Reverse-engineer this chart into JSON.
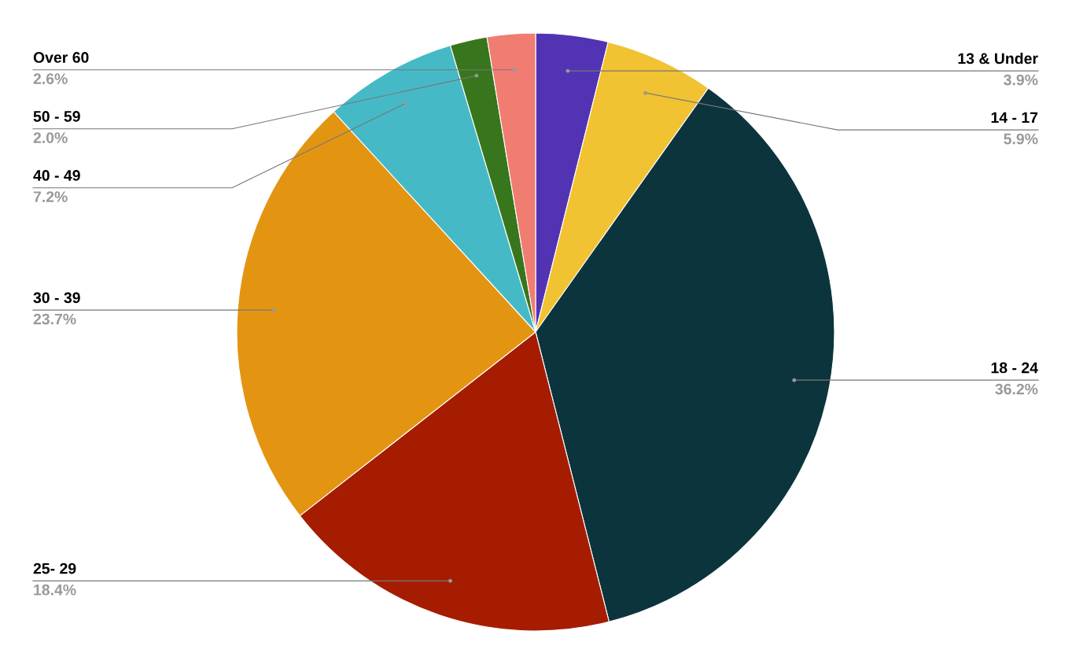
{
  "chart_data": {
    "type": "pie",
    "categories": [
      "13 & Under",
      "14 - 17",
      "18 - 24",
      "25- 29",
      "30 - 39",
      "40 - 49",
      "50 - 59",
      "Over 60"
    ],
    "values": [
      3.9,
      5.9,
      36.2,
      18.4,
      23.7,
      7.2,
      2.0,
      2.6
    ],
    "value_labels": [
      "3.9%",
      "5.9%",
      "36.2%",
      "18.4%",
      "23.7%",
      "7.2%",
      "2.0%",
      "2.6%"
    ],
    "colors": [
      "#5233b3",
      "#f1c232",
      "#0c343d",
      "#a61c00",
      "#e39512",
      "#45bac6",
      "#38761d",
      "#f07c72"
    ],
    "legend": false
  }
}
